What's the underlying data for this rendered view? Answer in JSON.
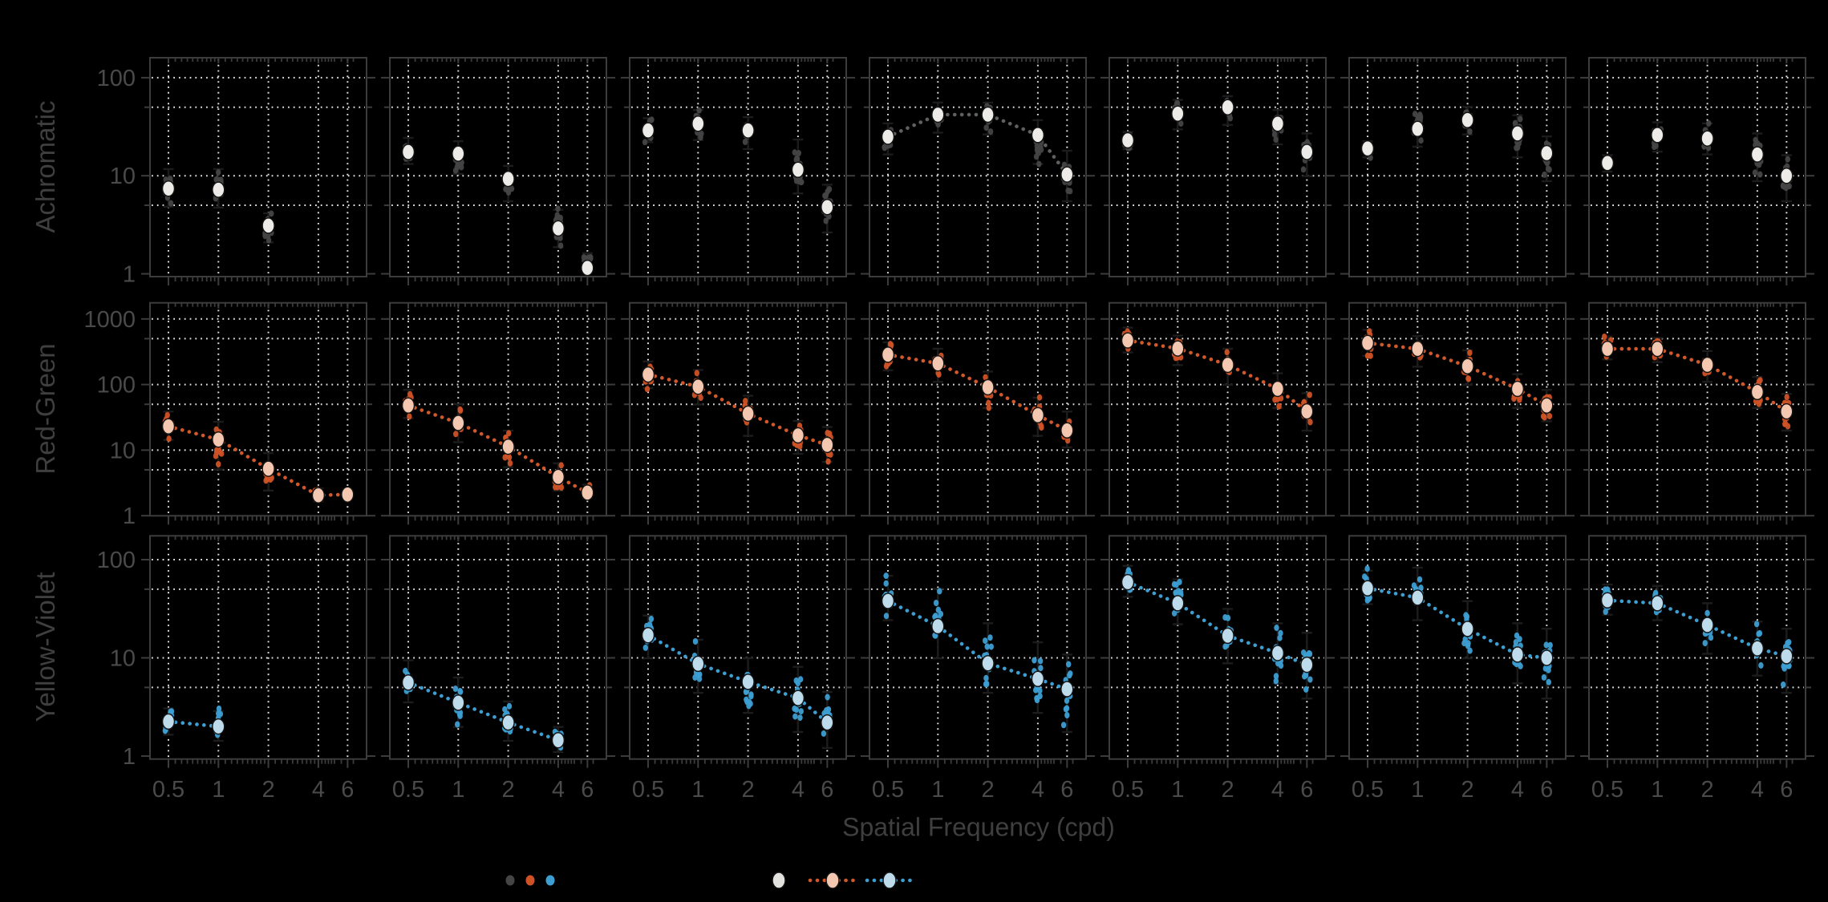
{
  "chart_data": {
    "type": "scatter",
    "xlabel": "Spatial Frequency (cpd)",
    "x_values": [
      0.5,
      1,
      2,
      4,
      6
    ],
    "x_tick_labels": [
      "0.5",
      "1",
      "2",
      "4",
      "6"
    ],
    "grid_color": "#efefef",
    "axis_color": "#3c3c3c",
    "tick_label_color": "#4a4a4a",
    "rows": [
      {
        "label": "Achromatic",
        "ytick_values": [
          1,
          10,
          100
        ],
        "ytick_labels": [
          "1",
          "10",
          "100"
        ],
        "grid_y": [
          5,
          10,
          50,
          100
        ],
        "scatter_color": "#454545",
        "mean_fill": "#edebe7",
        "line_color": "#606060",
        "panels": [
          {
            "x": [
              0.5,
              1,
              2
            ],
            "mean": [
              7.4,
              7.2,
              3.1
            ],
            "lo": [
              4.4,
              4.3,
              1.9
            ],
            "hi": [
              13,
              13,
              4.6
            ],
            "line": false
          },
          {
            "x": [
              0.5,
              1,
              2,
              4,
              6
            ],
            "mean": [
              17.5,
              16.8,
              9.3,
              2.9,
              1.15
            ],
            "lo": [
              12,
              9.5,
              5,
              1.7,
              0.95
            ],
            "hi": [
              27,
              25,
              14,
              5,
              1.8
            ],
            "line": false
          },
          {
            "x": [
              0.5,
              1,
              2,
              4,
              6
            ],
            "mean": [
              29,
              34,
              29,
              11.5,
              4.8
            ],
            "lo": [
              20,
              21,
              17,
              6,
              2.4
            ],
            "hi": [
              43,
              52,
              44,
              26,
              9
            ],
            "line": false
          },
          {
            "x": [
              0.5,
              1,
              2,
              4,
              6
            ],
            "mean": [
              25,
              42,
              42,
              26,
              10.3
            ],
            "lo": [
              15,
              25,
              24,
              12,
              5
            ],
            "hi": [
              38,
              62,
              62,
              41,
              20
            ],
            "line": true
          },
          {
            "x": [
              0.5,
              1,
              2,
              4,
              6
            ],
            "mean": [
              23,
              43,
              50,
              34,
              17.5
            ],
            "lo": [
              17,
              27,
              30,
              19,
              9
            ],
            "hi": [
              31,
              66,
              72,
              52,
              30
            ],
            "line": false
          },
          {
            "x": [
              0.5,
              1,
              2,
              4,
              6
            ],
            "mean": [
              19,
              30,
              37,
              27,
              17
            ],
            "lo": [
              14,
              18,
              24,
              14,
              8
            ],
            "hi": [
              25,
              46,
              56,
              46,
              28
            ],
            "line": false
          },
          {
            "x": [
              0.5,
              1,
              2,
              4,
              6
            ],
            "mean": [
              13.5,
              26,
              24,
              16.5,
              10
            ],
            "lo": [
              10,
              16,
              15,
              8,
              5
            ],
            "hi": [
              18,
              39,
              38,
              30,
              18
            ],
            "line": false
          }
        ]
      },
      {
        "label": "Red-Green",
        "ytick_values": [
          1,
          10,
          100,
          1000
        ],
        "ytick_labels": [
          "1",
          "10",
          "100",
          "1000"
        ],
        "grid_y": [
          5,
          10,
          50,
          100,
          500,
          1000
        ],
        "scatter_color": "#ce5226",
        "mean_fill": "#f4c8b0",
        "line_color": "#d0582b",
        "panels": [
          {
            "x": [
              0.5,
              1,
              2,
              4,
              6
            ],
            "mean": [
              23,
              14.5,
              5.2,
              2.05,
              2.1
            ],
            "lo": [
              13,
              4.6,
              2.2,
              1.5,
              1.8
            ],
            "hi": [
              43,
              30,
              10,
              2.9,
              2.5
            ],
            "line": true
          },
          {
            "x": [
              0.5,
              1,
              2,
              4,
              6
            ],
            "mean": [
              48,
              26,
              11.3,
              3.9,
              2.25
            ],
            "lo": [
              28,
              12,
              5,
              2.2,
              1.7
            ],
            "hi": [
              92,
              56,
              22,
              7,
              3.3
            ],
            "line": true
          },
          {
            "x": [
              0.5,
              1,
              2,
              4,
              6
            ],
            "mean": [
              142,
              93,
              36,
              16.8,
              12
            ],
            "lo": [
              80,
              45,
              15,
              8,
              6
            ],
            "hi": [
              250,
              185,
              75,
              31,
              25
            ],
            "line": true
          },
          {
            "x": [
              0.5,
              1,
              2,
              4,
              6
            ],
            "mean": [
              285,
              210,
              91,
              34,
              20
            ],
            "lo": [
              150,
              100,
              40,
              15,
              10
            ],
            "hi": [
              490,
              390,
              175,
              70,
              43
            ],
            "line": true
          },
          {
            "x": [
              0.5,
              1,
              2,
              4,
              6
            ],
            "mean": [
              470,
              355,
              200,
              86,
              39
            ],
            "lo": [
              280,
              180,
              90,
              40,
              18
            ],
            "hi": [
              820,
              620,
              390,
              165,
              82
            ],
            "line": true
          },
          {
            "x": [
              0.5,
              1,
              2,
              4,
              6
            ],
            "mean": [
              430,
              350,
              190,
              86,
              48
            ],
            "lo": [
              250,
              170,
              90,
              40,
              25
            ],
            "hi": [
              760,
              610,
              370,
              160,
              92
            ],
            "line": true
          },
          {
            "x": [
              0.5,
              1,
              2,
              4,
              6
            ],
            "mean": [
              350,
              350,
              200,
              77,
              39
            ],
            "lo": [
              220,
              200,
              100,
              40,
              18
            ],
            "hi": [
              600,
              570,
              360,
              145,
              80
            ],
            "line": true
          }
        ]
      },
      {
        "label": "Yellow-Violet",
        "ytick_values": [
          1,
          10,
          100
        ],
        "ytick_labels": [
          "1",
          "10",
          "100"
        ],
        "grid_y": [
          5,
          10,
          50,
          100
        ],
        "scatter_color": "#3d9ed2",
        "mean_fill": "#bedbec",
        "line_color": "#3d9ed2",
        "panels": [
          {
            "x": [
              0.5,
              1
            ],
            "mean": [
              2.25,
              2.0
            ],
            "lo": [
              1.5,
              1.3
            ],
            "hi": [
              3.4,
              3.2
            ],
            "line": true
          },
          {
            "x": [
              0.5,
              1,
              2,
              4
            ],
            "mean": [
              5.6,
              3.5,
              2.2,
              1.45
            ],
            "lo": [
              3.2,
              1.8,
              1.3,
              1.0
            ],
            "hi": [
              10.5,
              7,
              4,
              2.2
            ],
            "line": true
          },
          {
            "x": [
              0.5,
              1,
              2,
              4,
              6
            ],
            "mean": [
              17,
              8.7,
              5.7,
              3.9,
              2.2
            ],
            "lo": [
              9,
              4,
              2.5,
              1.6,
              1.1
            ],
            "hi": [
              30,
              17,
              11,
              9,
              5
            ],
            "line": true
          },
          {
            "x": [
              0.5,
              1,
              2,
              4,
              6
            ],
            "mean": [
              38,
              21,
              8.8,
              6.1,
              4.8
            ],
            "lo": [
              22,
              9,
              4,
              2.5,
              1.6
            ],
            "hi": [
              76,
              56,
              25,
              16,
              12
            ],
            "line": true
          },
          {
            "x": [
              0.5,
              1,
              2,
              4,
              6
            ],
            "mean": [
              59,
              36,
              16.8,
              11.2,
              8.5
            ],
            "lo": [
              38,
              20,
              8,
              5,
              3.5
            ],
            "hi": [
              96,
              70,
              35,
              25,
              20
            ],
            "line": true
          },
          {
            "x": [
              0.5,
              1,
              2,
              4,
              6
            ],
            "mean": [
              51,
              41,
              19.7,
              10.8,
              10
            ],
            "lo": [
              32,
              22,
              9,
              5,
              3.5
            ],
            "hi": [
              86,
              92,
              42,
              25,
              22
            ],
            "line": true
          },
          {
            "x": [
              0.5,
              1,
              2,
              4,
              6
            ],
            "mean": [
              38.5,
              36,
              21.6,
              12.5,
              10.4
            ],
            "lo": [
              25,
              22,
              10,
              6,
              4
            ],
            "hi": [
              62,
              60,
              40,
              26,
              22
            ],
            "line": true
          }
        ]
      }
    ],
    "legend": {
      "dot_colors": [
        "#454545",
        "#ce5226",
        "#3d9ed2"
      ],
      "mean_items": [
        {
          "fill": "#e4e2de",
          "line": ""
        },
        {
          "fill": "#f4c8b0",
          "line": "#d0582b"
        },
        {
          "fill": "#bedbec",
          "line": "#3d9ed2"
        }
      ]
    }
  }
}
